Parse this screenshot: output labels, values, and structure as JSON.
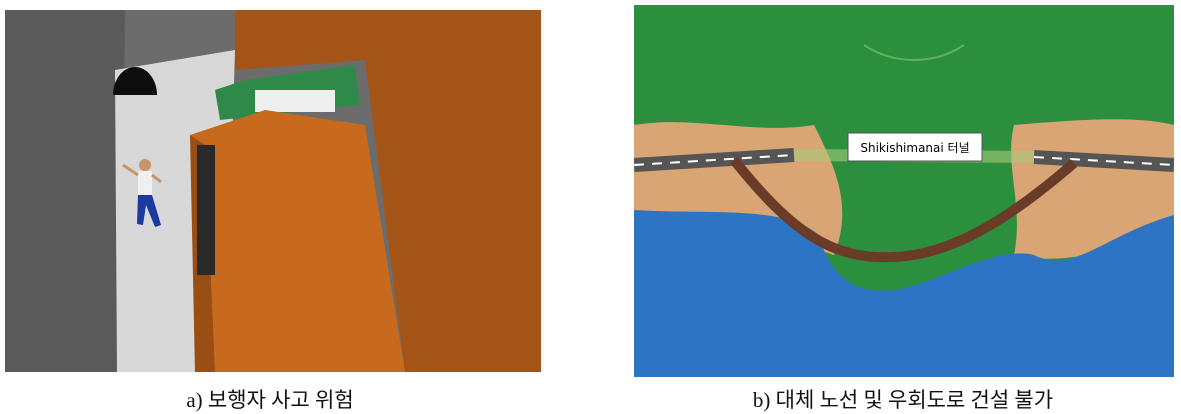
{
  "figures": [
    {
      "caption": "a) 보행자 사고 위험"
    },
    {
      "label": "Shikishimanai 터널",
      "caption": "b) 대체 노선 및 우회도로 건설 불가"
    }
  ]
}
